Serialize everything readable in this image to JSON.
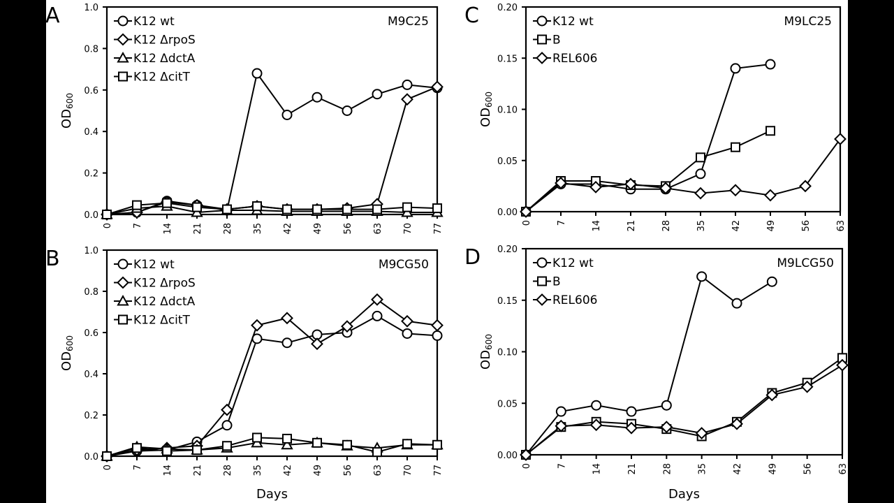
{
  "chart_data": [
    {
      "panel": "A",
      "type": "line",
      "condition": "M9C25",
      "xlabel": "",
      "ylabel": "OD600",
      "ylim": [
        0,
        1.0
      ],
      "yticks": [
        "0.0",
        "0.2",
        "0.4",
        "0.6",
        "0.8",
        "1.0"
      ],
      "ytick_values": [
        0,
        0.2,
        0.4,
        0.6,
        0.8,
        1.0
      ],
      "x": [
        0,
        7,
        14,
        21,
        28,
        35,
        42,
        49,
        56,
        63,
        70,
        77
      ],
      "xticks": [
        "0",
        "7",
        "14",
        "21",
        "28",
        "35",
        "42",
        "49",
        "56",
        "63",
        "70",
        "77"
      ],
      "grid": false,
      "legend": "top-left",
      "series": [
        {
          "name": "K12 wt",
          "marker": "circle",
          "values": [
            0.0,
            0.01,
            0.065,
            0.045,
            0.02,
            0.68,
            0.48,
            0.565,
            0.5,
            0.58,
            0.625,
            0.61
          ]
        },
        {
          "name": "K12 ΔrpoS",
          "marker": "diamond",
          "values": [
            0.0,
            0.01,
            0.06,
            0.045,
            0.025,
            0.04,
            0.025,
            0.025,
            0.03,
            0.05,
            0.555,
            0.615
          ]
        },
        {
          "name": "K12 ΔdctA",
          "marker": "triangle",
          "values": [
            0.0,
            0.03,
            0.04,
            0.01,
            0.02,
            0.02,
            0.015,
            0.015,
            0.015,
            0.015,
            0.01,
            0.01
          ]
        },
        {
          "name": "K12 ΔcitT",
          "marker": "square",
          "values": [
            0.0,
            0.045,
            0.055,
            0.035,
            0.025,
            0.04,
            0.025,
            0.025,
            0.025,
            0.025,
            0.035,
            0.03
          ]
        }
      ]
    },
    {
      "panel": "B",
      "type": "line",
      "condition": "M9CG50",
      "xlabel": "Days",
      "ylabel": "OD600",
      "ylim": [
        0,
        1.0
      ],
      "yticks": [
        "0.0",
        "0.2",
        "0.4",
        "0.6",
        "0.8",
        "1.0"
      ],
      "ytick_values": [
        0,
        0.2,
        0.4,
        0.6,
        0.8,
        1.0
      ],
      "x": [
        0,
        7,
        14,
        21,
        28,
        35,
        42,
        49,
        56,
        63,
        70,
        77
      ],
      "xticks": [
        "0",
        "7",
        "14",
        "21",
        "28",
        "35",
        "42",
        "49",
        "56",
        "63",
        "70",
        "77"
      ],
      "grid": false,
      "legend": "top-left",
      "series": [
        {
          "name": "K12 wt",
          "marker": "circle",
          "values": [
            0.0,
            0.025,
            0.03,
            0.07,
            0.15,
            0.57,
            0.55,
            0.59,
            0.6,
            0.68,
            0.595,
            0.585
          ]
        },
        {
          "name": "K12 ΔrpoS",
          "marker": "diamond",
          "values": [
            0.0,
            0.03,
            0.04,
            0.05,
            0.225,
            0.635,
            0.67,
            0.545,
            0.63,
            0.76,
            0.655,
            0.635
          ]
        },
        {
          "name": "K12 ΔdctA",
          "marker": "triangle",
          "values": [
            0.0,
            0.045,
            0.035,
            0.03,
            0.04,
            0.065,
            0.055,
            0.065,
            0.05,
            0.04,
            0.055,
            0.055
          ]
        },
        {
          "name": "K12 ΔcitT",
          "marker": "square",
          "values": [
            0.0,
            0.04,
            0.025,
            0.03,
            0.05,
            0.09,
            0.085,
            0.065,
            0.055,
            0.02,
            0.06,
            0.055
          ]
        }
      ]
    },
    {
      "panel": "C",
      "type": "line",
      "condition": "M9LC25",
      "xlabel": "",
      "ylabel": "OD600",
      "ylim": [
        0,
        0.2
      ],
      "yticks": [
        "0.00",
        "0.05",
        "0.10",
        "0.15",
        "0.20"
      ],
      "ytick_values": [
        0,
        0.05,
        0.1,
        0.15,
        0.2
      ],
      "x": [
        0,
        7,
        14,
        21,
        28,
        35,
        42,
        49,
        56,
        63
      ],
      "xticks": [
        "0",
        "7",
        "14",
        "21",
        "28",
        "35",
        "42",
        "49",
        "56",
        "63"
      ],
      "grid": false,
      "legend": "top-left",
      "series": [
        {
          "name": "K12 wt",
          "marker": "circle",
          "values": [
            0.0,
            0.027,
            0.027,
            0.022,
            0.022,
            0.037,
            0.14,
            0.144,
            null,
            null
          ]
        },
        {
          "name": "B",
          "marker": "square",
          "values": [
            0.0,
            0.03,
            0.03,
            0.026,
            0.025,
            0.053,
            0.063,
            0.079,
            null,
            null
          ]
        },
        {
          "name": "REL606",
          "marker": "diamond",
          "values": [
            0.0,
            0.028,
            0.024,
            0.027,
            0.023,
            0.018,
            0.021,
            0.016,
            0.025,
            0.071
          ]
        }
      ]
    },
    {
      "panel": "D",
      "type": "line",
      "condition": "M9LCG50",
      "xlabel": "Days",
      "ylabel": "OD600",
      "ylim": [
        0,
        0.2
      ],
      "yticks": [
        "0.00",
        "0.05",
        "0.10",
        "0.15",
        "0.20"
      ],
      "ytick_values": [
        0,
        0.05,
        0.1,
        0.15,
        0.2
      ],
      "x": [
        0,
        7,
        14,
        21,
        28,
        35,
        42,
        49,
        56,
        63
      ],
      "xticks": [
        "0",
        "7",
        "14",
        "21",
        "28",
        "35",
        "42",
        "49",
        "56",
        "63"
      ],
      "grid": false,
      "legend": "top-left",
      "series": [
        {
          "name": "K12 wt",
          "marker": "circle",
          "values": [
            0.0,
            0.042,
            0.048,
            0.042,
            0.048,
            0.173,
            0.147,
            0.168,
            null,
            null
          ]
        },
        {
          "name": "B",
          "marker": "square",
          "values": [
            0.0,
            0.027,
            0.032,
            0.03,
            0.025,
            0.018,
            0.032,
            0.06,
            0.07,
            0.094
          ]
        },
        {
          "name": "REL606",
          "marker": "diamond",
          "values": [
            0.0,
            0.028,
            0.029,
            0.026,
            0.027,
            0.021,
            0.03,
            0.058,
            0.066,
            0.087
          ]
        }
      ]
    }
  ]
}
